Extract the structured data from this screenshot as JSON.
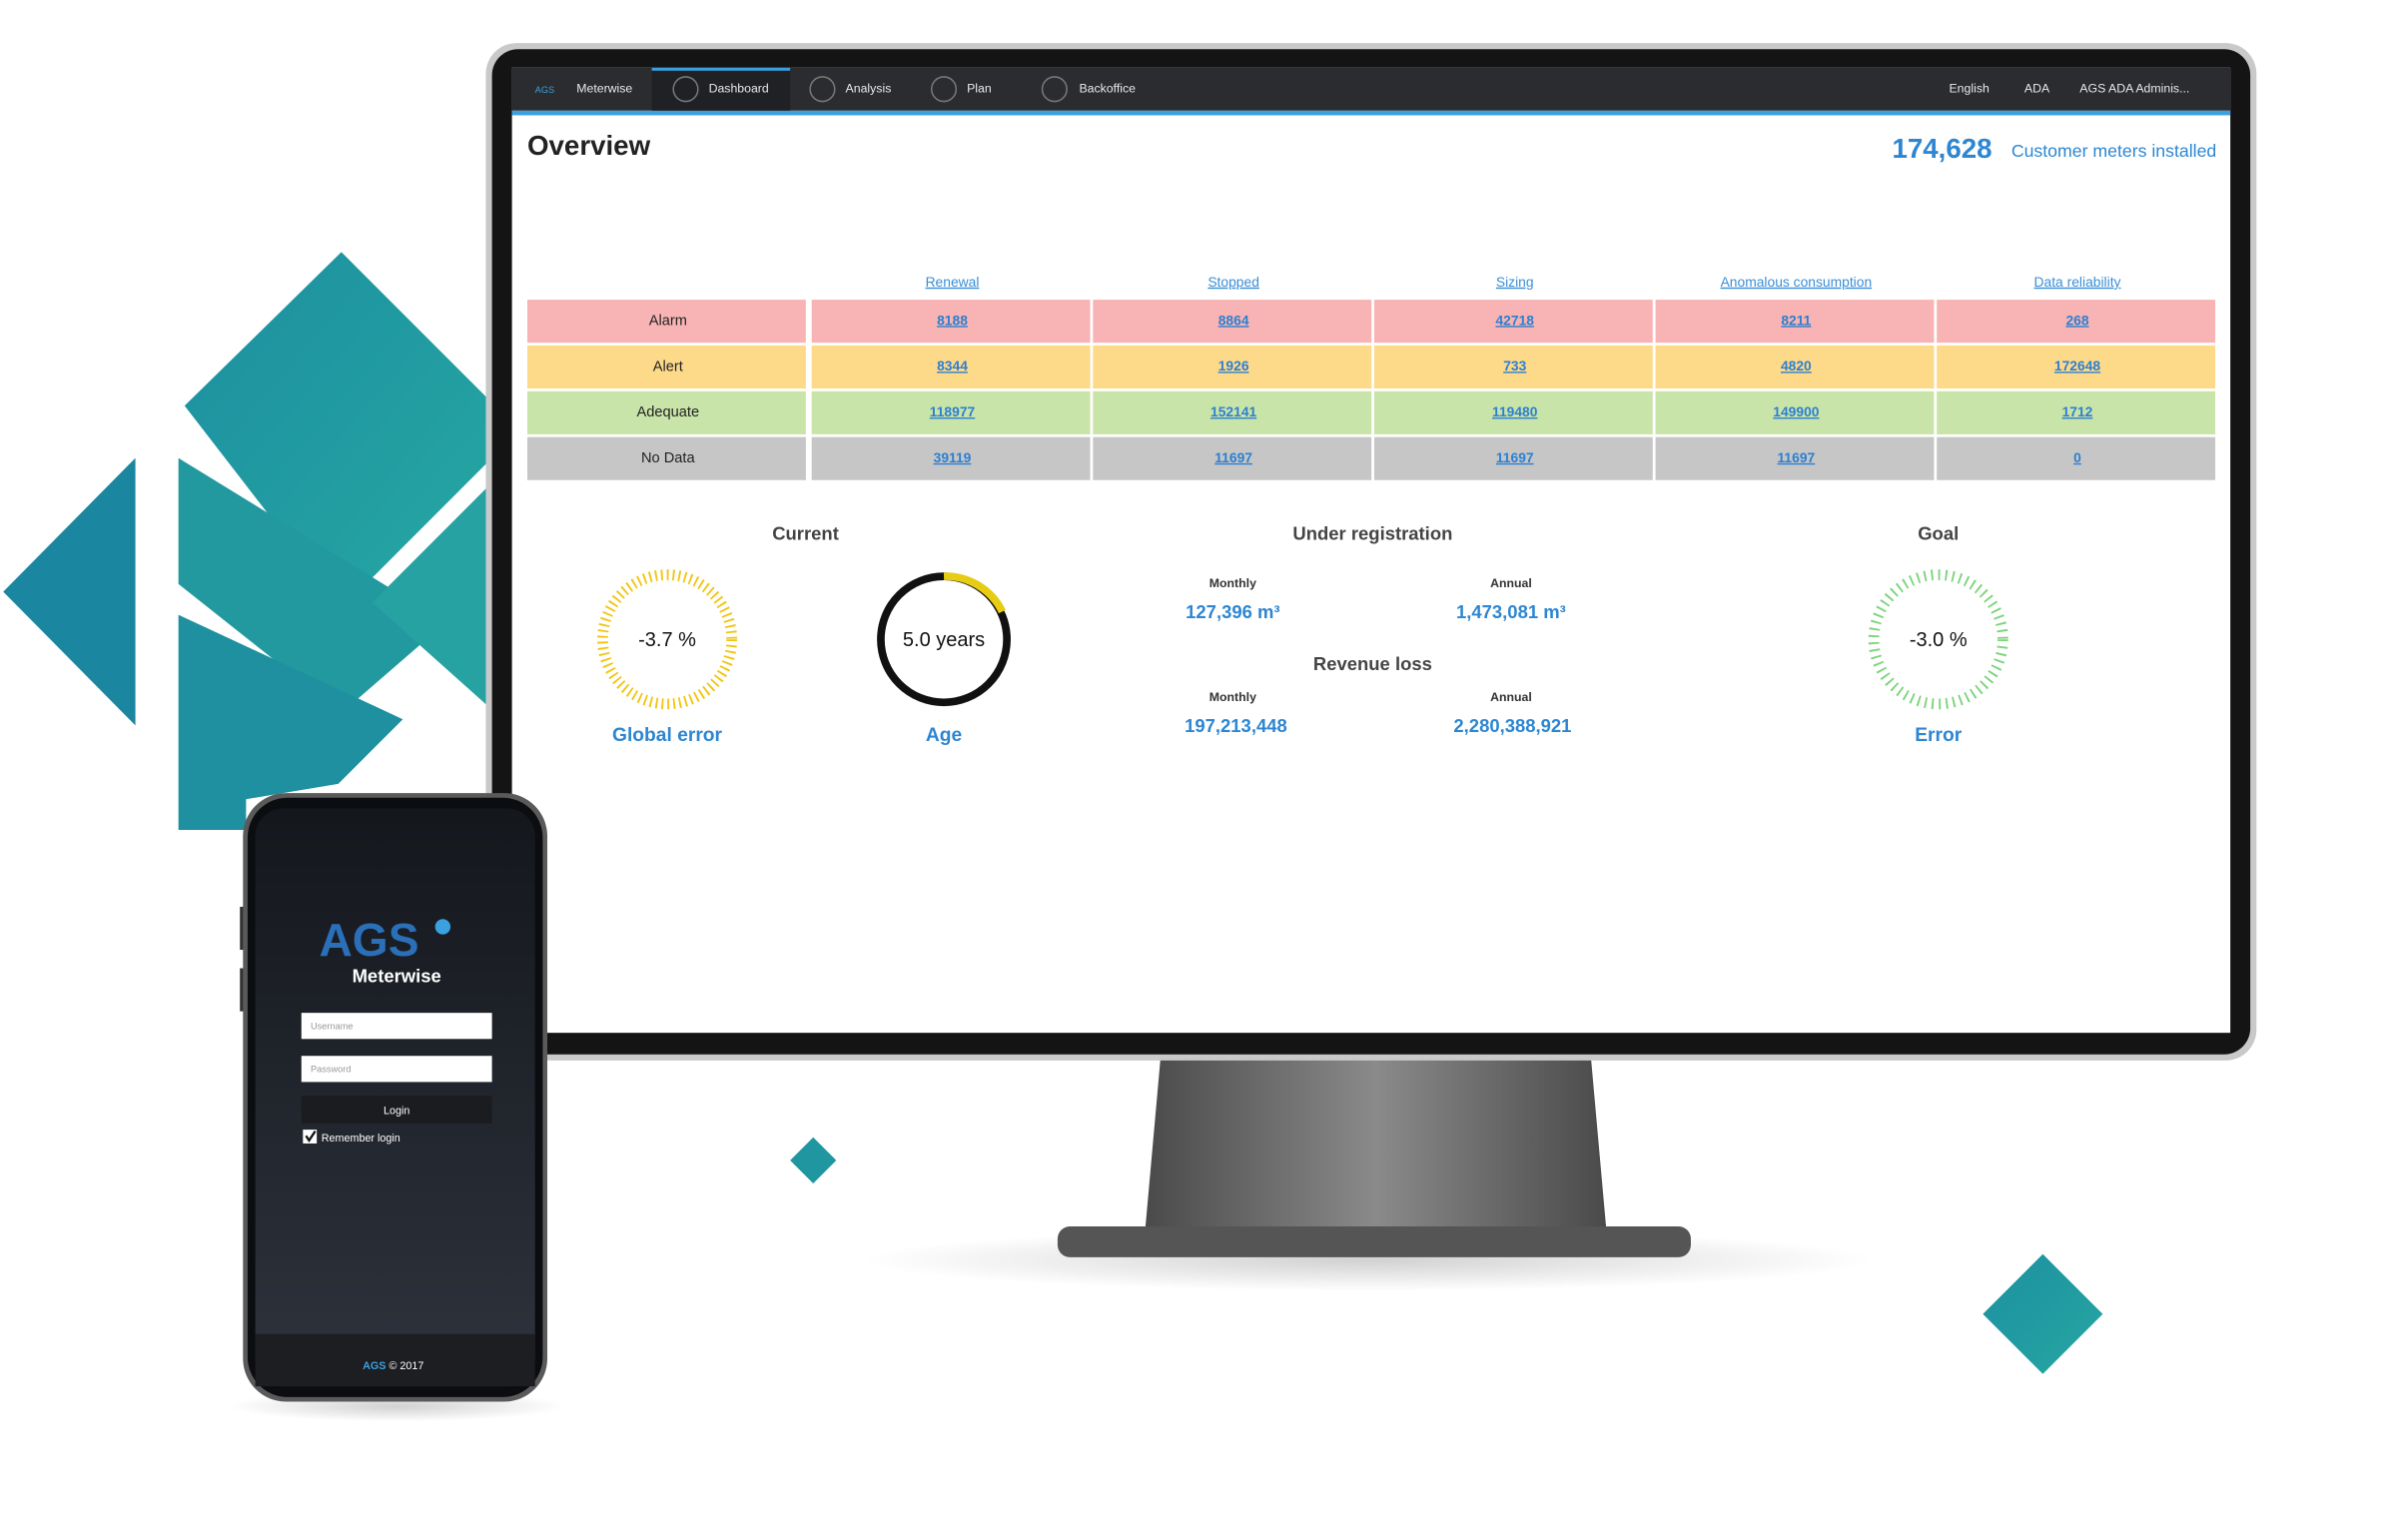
{
  "nav": {
    "logo": "AGS",
    "brand": "Meterwise",
    "items": [
      "Dashboard",
      "Analysis",
      "Plan",
      "Backoffice"
    ],
    "language": "English",
    "org": "ADA",
    "user": "AGS ADA Adminis..."
  },
  "header": {
    "title": "Overview",
    "count": "174,628",
    "count_label": "Customer meters installed"
  },
  "table": {
    "columns": [
      "Renewal",
      "Stopped",
      "Sizing",
      "Anomalous consumption",
      "Data reliability"
    ],
    "rows": [
      {
        "label": "Alarm",
        "color": "#f8b4b4",
        "cells": [
          8188,
          8864,
          42718,
          8211,
          268
        ]
      },
      {
        "label": "Alert",
        "color": "#fdd98a",
        "cells": [
          8344,
          1926,
          733,
          4820,
          172648
        ]
      },
      {
        "label": "Adequate",
        "color": "#c9e4a9",
        "cells": [
          118977,
          152141,
          119480,
          149900,
          1712
        ]
      },
      {
        "label": "No Data",
        "color": "#c6c6c6",
        "cells": [
          39119,
          11697,
          11697,
          11697,
          0
        ]
      }
    ]
  },
  "current": {
    "title": "Current",
    "gauges": [
      {
        "value": "-3.7 %",
        "label": "Global error"
      },
      {
        "value": "5.0 years",
        "label": "Age"
      }
    ]
  },
  "under_registration": {
    "title": "Under registration",
    "monthly_label": "Monthly",
    "monthly": "127,396 m³",
    "annual_label": "Annual",
    "annual": "1,473,081 m³"
  },
  "revenue_loss": {
    "title": "Revenue loss",
    "monthly_label": "Monthly",
    "monthly": "197,213,448",
    "annual_label": "Annual",
    "annual": "2,280,388,921"
  },
  "goal": {
    "title": "Goal",
    "value": "-3.0 %",
    "label": "Error"
  },
  "phone": {
    "logo": "AGS",
    "app": "Meterwise",
    "username": "Username",
    "password": "Password",
    "login": "Login",
    "remember": "Remember login",
    "footer_brand": "AGS",
    "footer_text": "© 2017"
  }
}
